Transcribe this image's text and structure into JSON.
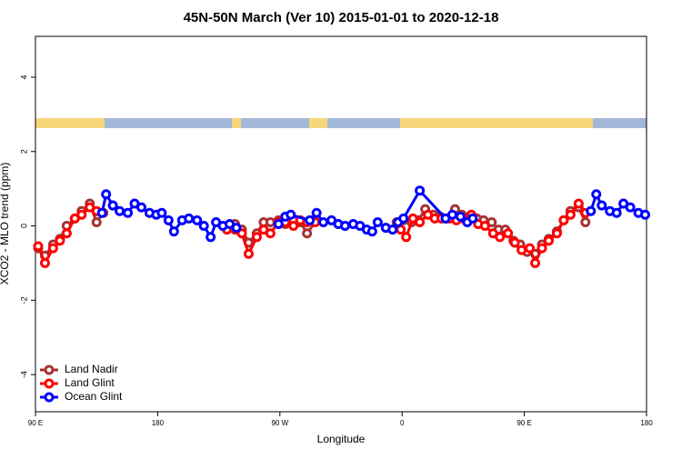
{
  "chart_data": {
    "type": "line",
    "title": "45N-50N March (Ver 10)   2015-01-01 to 2020-12-18",
    "x_label": "Longitude",
    "y_label": "XCO2 - MLO trend (ppm)",
    "xlim": [
      90,
      540
    ],
    "xticks": [
      {
        "value": 90,
        "label": "90 E"
      },
      {
        "value": 180,
        "label": "180"
      },
      {
        "value": 270,
        "label": "90 W"
      },
      {
        "value": 360,
        "label": "0"
      },
      {
        "value": 450,
        "label": "90 E"
      },
      {
        "value": 540,
        "label": "180"
      }
    ],
    "ylim": [
      -5,
      5.1
    ],
    "yticks": [
      -4,
      -2,
      0,
      2,
      4
    ],
    "legend": "bottom-left",
    "series": [
      {
        "name": "Land Nadir",
        "color": "#a83232",
        "x": [
          92,
          97,
          103,
          108,
          113,
          119,
          124,
          130,
          135,
          140,
          237,
          242,
          247,
          253,
          258,
          263,
          269,
          274,
          280,
          285,
          290,
          296,
          356,
          361,
          367,
          372,
          377,
          383,
          388,
          393,
          399,
          404,
          409,
          415,
          420,
          426,
          431,
          436,
          442,
          447,
          452,
          458,
          463,
          468,
          474,
          479,
          484,
          490,
          495
        ],
        "values": [
          -0.6,
          -0.8,
          -0.5,
          -0.35,
          0.0,
          0.2,
          0.4,
          0.6,
          0.1,
          0.35,
          0.05,
          -0.1,
          -0.45,
          -0.2,
          0.1,
          0.1,
          0.15,
          0.05,
          0.15,
          0.1,
          -0.2,
          0.1,
          0.1,
          0.15,
          0.1,
          0.15,
          0.45,
          0.3,
          0.25,
          0.2,
          0.45,
          0.3,
          0.15,
          0.2,
          0.15,
          0.1,
          -0.1,
          -0.1,
          -0.4,
          -0.5,
          -0.7,
          -0.75,
          -0.5,
          -0.35,
          -0.15,
          0.15,
          0.4,
          0.5,
          0.1
        ]
      },
      {
        "name": "Land Glint",
        "color": "#ff0000",
        "x": [
          92,
          97,
          103,
          108,
          113,
          119,
          124,
          130,
          135,
          231,
          237,
          242,
          247,
          253,
          258,
          263,
          269,
          274,
          280,
          285,
          290,
          296,
          359,
          363,
          368,
          373,
          379,
          384,
          389,
          395,
          400,
          405,
          411,
          416,
          421,
          427,
          432,
          438,
          443,
          448,
          454,
          458,
          463,
          468,
          474,
          479,
          484,
          490,
          495
        ],
        "values": [
          -0.55,
          -1.0,
          -0.6,
          -0.4,
          -0.2,
          0.2,
          0.3,
          0.5,
          0.4,
          -0.1,
          -0.1,
          -0.2,
          -0.75,
          -0.3,
          -0.1,
          -0.2,
          0.1,
          0.1,
          0.0,
          0.15,
          0.1,
          0.1,
          -0.1,
          -0.3,
          0.2,
          0.1,
          0.3,
          0.2,
          0.2,
          0.2,
          0.15,
          0.2,
          0.3,
          0.05,
          0.0,
          -0.2,
          -0.3,
          -0.2,
          -0.45,
          -0.65,
          -0.6,
          -1.0,
          -0.6,
          -0.4,
          -0.2,
          0.15,
          0.3,
          0.6,
          0.35
        ]
      },
      {
        "name": "Ocean Glint",
        "color": "#0000ff",
        "x": [
          139,
          142,
          147,
          152,
          158,
          163,
          168,
          174,
          179,
          183,
          188,
          192,
          198,
          203,
          209,
          214,
          219,
          223,
          228,
          233,
          238,
          269,
          274,
          278,
          292,
          297,
          302,
          308,
          313,
          318,
          324,
          329,
          334,
          338,
          342,
          348,
          353,
          357,
          361,
          373,
          392,
          397,
          403,
          408,
          412,
          499,
          503,
          507,
          513,
          518,
          523,
          528,
          534,
          539
        ],
        "values": [
          0.35,
          0.85,
          0.55,
          0.4,
          0.35,
          0.6,
          0.5,
          0.35,
          0.3,
          0.35,
          0.15,
          -0.15,
          0.15,
          0.2,
          0.15,
          0.0,
          -0.3,
          0.1,
          0.0,
          0.05,
          -0.05,
          0.05,
          0.25,
          0.3,
          0.15,
          0.35,
          0.1,
          0.15,
          0.05,
          0.0,
          0.05,
          0.0,
          -0.1,
          -0.15,
          0.1,
          -0.05,
          -0.1,
          0.1,
          0.2,
          0.95,
          0.2,
          0.3,
          0.25,
          0.1,
          0.2,
          0.4,
          0.85,
          0.55,
          0.4,
          0.35,
          0.6,
          0.5,
          0.35,
          0.3
        ]
      }
    ]
  }
}
